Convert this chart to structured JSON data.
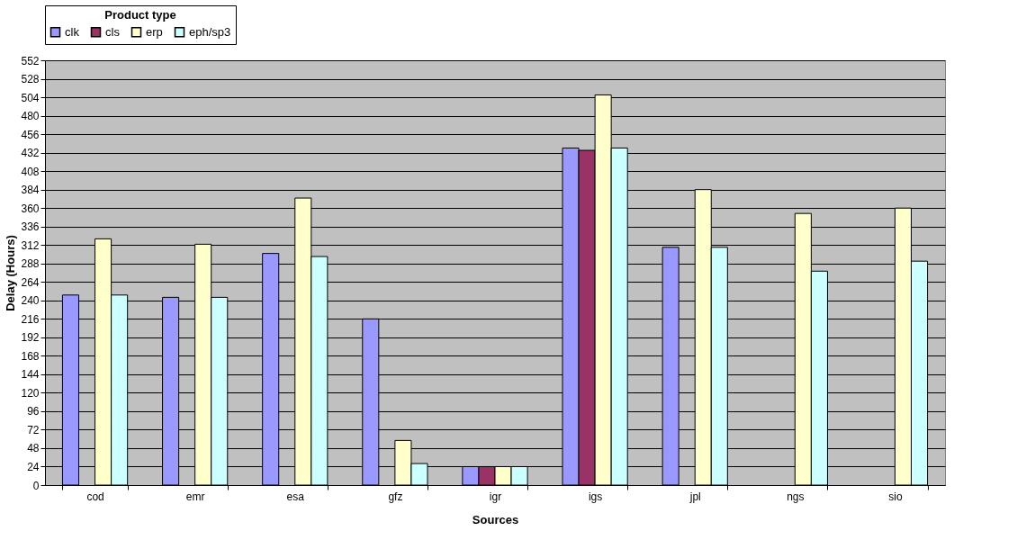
{
  "chart_data": {
    "type": "bar",
    "xlabel": "Sources",
    "ylabel": "Delay (Hours)",
    "legend_title": "Product type",
    "legend": "top",
    "categories": [
      "cod",
      "emr",
      "esa",
      "gfz",
      "igr",
      "igs",
      "jpl",
      "ngs",
      "sio"
    ],
    "series": [
      {
        "name": "clk",
        "color": "#9999ff",
        "values": [
          247,
          244,
          301,
          216,
          24,
          438,
          309,
          null,
          null
        ]
      },
      {
        "name": "cls",
        "color": "#993366",
        "values": [
          null,
          null,
          null,
          null,
          24,
          435,
          null,
          null,
          null
        ]
      },
      {
        "name": "erp",
        "color": "#ffffcc",
        "values": [
          320,
          313,
          373,
          58,
          24,
          507,
          384,
          353,
          360
        ]
      },
      {
        "name": "eph/sp3",
        "color": "#ccffff",
        "values": [
          247,
          244,
          297,
          28,
          24,
          438,
          309,
          278,
          291
        ]
      }
    ],
    "ylim": [
      0,
      552
    ],
    "yticks": [
      0,
      24,
      48,
      72,
      96,
      120,
      144,
      168,
      192,
      216,
      240,
      264,
      288,
      312,
      336,
      360,
      384,
      408,
      432,
      456,
      480,
      504,
      528,
      552
    ],
    "grid": "y"
  }
}
